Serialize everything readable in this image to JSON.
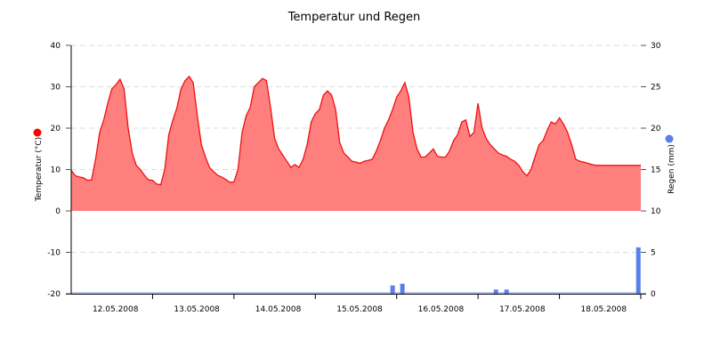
{
  "chart_data": {
    "type": "area+bar",
    "title": "Temperatur und Regen",
    "xlabel": "",
    "x_tick_labels": [
      "12.05.2008",
      "13.05.2008",
      "14.05.2008",
      "15.05.2008",
      "16.05.2008",
      "17.05.2008",
      "18.05.2008"
    ],
    "y_left": {
      "label": "Temperatur (°C)",
      "ticks": [
        40,
        30,
        20,
        10,
        0,
        -10,
        -20
      ],
      "range": [
        -20,
        40
      ]
    },
    "y_right": {
      "label": "Regen (mm)",
      "ticks": [
        30,
        25,
        20,
        15,
        10,
        5,
        0
      ],
      "range": [
        0,
        30
      ]
    },
    "grid": "dashed horizontal",
    "colors": {
      "temperature_line": "#ee1111",
      "temperature_fill": "#ff7f7f",
      "rain_bar": "#5b7fe8",
      "grid": "#dddddd"
    },
    "series": [
      {
        "name": "Temperatur",
        "axis": "left",
        "type": "area",
        "x_days": [
          0,
          0.05,
          0.1,
          0.15,
          0.2,
          0.25,
          0.3,
          0.35,
          0.4,
          0.45,
          0.5,
          0.55,
          0.6,
          0.65,
          0.7,
          0.75,
          0.8,
          0.85,
          0.9,
          0.95,
          1.0,
          1.05,
          1.1,
          1.15,
          1.2,
          1.25,
          1.3,
          1.35,
          1.4,
          1.45,
          1.5,
          1.55,
          1.6,
          1.65,
          1.7,
          1.75,
          1.8,
          1.85,
          1.9,
          1.95,
          2.0,
          2.05,
          2.1,
          2.15,
          2.2,
          2.25,
          2.3,
          2.35,
          2.4,
          2.45,
          2.5,
          2.55,
          2.6,
          2.65,
          2.7,
          2.75,
          2.8,
          2.85,
          2.9,
          2.95,
          3.0,
          3.05,
          3.1,
          3.15,
          3.2,
          3.25,
          3.3,
          3.35,
          3.4,
          3.45,
          3.5,
          3.55,
          3.6,
          3.65,
          3.7,
          3.75,
          3.8,
          3.85,
          3.9,
          3.95,
          4.0,
          4.05,
          4.1,
          4.15,
          4.2,
          4.25,
          4.3,
          4.35,
          4.4,
          4.45,
          4.5,
          4.55,
          4.6,
          4.65,
          4.7,
          4.75,
          4.8,
          4.85,
          4.9,
          4.95,
          5.0,
          5.05,
          5.1,
          5.15,
          5.2,
          5.25,
          5.3,
          5.35,
          5.4,
          5.45,
          5.5,
          5.55,
          5.6,
          5.65,
          5.7,
          5.75,
          5.8,
          5.85,
          5.9,
          5.95,
          6.0,
          6.05,
          6.1,
          6.15,
          6.2,
          6.25,
          6.3,
          6.35,
          6.4,
          6.45,
          6.5,
          6.55,
          6.6,
          6.65,
          6.7,
          6.75,
          6.8,
          6.85,
          6.9,
          6.95,
          7.0
        ],
        "values": [
          9.8,
          8.5,
          8.2,
          8.0,
          7.4,
          7.5,
          12.5,
          19.0,
          22.0,
          26.0,
          29.5,
          30.5,
          31.8,
          29.5,
          20.0,
          14.0,
          11.0,
          10.0,
          8.6,
          7.5,
          7.4,
          6.5,
          6.3,
          10.0,
          18.5,
          22.0,
          25.0,
          29.5,
          31.5,
          32.5,
          31.0,
          23.0,
          16.0,
          13.0,
          10.5,
          9.5,
          8.6,
          8.2,
          7.6,
          6.9,
          7.0,
          10.0,
          19.0,
          23.0,
          25.0,
          30.0,
          31.0,
          32.0,
          31.5,
          25.0,
          17.5,
          15.0,
          13.5,
          12.0,
          10.5,
          11.2,
          10.5,
          12.5,
          16.0,
          21.5,
          23.5,
          24.5,
          28.0,
          29.0,
          28.0,
          24.5,
          16.5,
          14.0,
          13.0,
          12.0,
          11.8,
          11.5,
          12.0,
          12.2,
          12.5,
          14.5,
          17.0,
          20.0,
          22.0,
          24.5,
          27.5,
          29.0,
          31.0,
          27.5,
          19.0,
          15.0,
          13.0,
          13.0,
          14.0,
          15.0,
          13.2,
          13.0,
          13.0,
          14.5,
          17.0,
          18.5,
          21.5,
          22.0,
          18.0,
          19.0,
          26.0,
          20.0,
          17.5,
          16.0,
          15.0,
          14.0,
          13.5,
          13.2,
          12.5,
          12.0,
          11.0,
          9.5,
          8.5,
          10.0,
          13.0,
          16.0,
          17.0,
          19.5,
          21.5,
          21.0,
          22.5,
          21.0,
          19.0,
          16.0,
          12.5,
          12.0,
          11.8,
          11.5,
          11.2,
          11.0,
          11.0,
          11.0,
          11.0,
          11.0,
          11.0,
          11.0,
          11.0,
          11.0,
          11.0,
          11.0,
          11.0
        ]
      },
      {
        "name": "Regen",
        "axis": "right",
        "type": "bar",
        "bars": [
          {
            "x_days": 3.95,
            "value": 1.0
          },
          {
            "x_days": 4.07,
            "value": 1.2
          },
          {
            "x_days": 5.22,
            "value": 0.5
          },
          {
            "x_days": 5.35,
            "value": 0.5
          },
          {
            "x_days": 6.97,
            "value": 5.6
          }
        ]
      }
    ],
    "legend": [
      {
        "label": "Temperatur (°C)",
        "marker": "red-dot",
        "position": "left-axis"
      },
      {
        "label": "Regen (mm)",
        "marker": "blue-dot",
        "position": "right-axis"
      }
    ]
  }
}
